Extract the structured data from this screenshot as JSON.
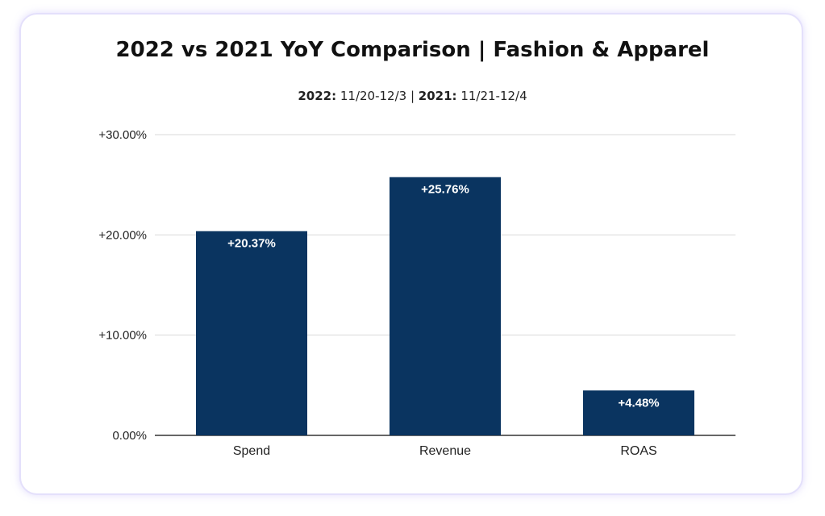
{
  "chart_data": {
    "type": "bar",
    "title": "2022 vs 2021 YoY Comparison | Fashion & Apparel",
    "subtitle": {
      "label_2022": "2022:",
      "range_2022": " 11/20-12/3",
      "separator": " | ",
      "label_2021": "2021:",
      "range_2021": " 11/21-12/4"
    },
    "categories": [
      "Spend",
      "Revenue",
      "ROAS"
    ],
    "values": [
      20.37,
      25.76,
      4.48
    ],
    "data_labels": [
      "+20.37%",
      "+25.76%",
      "+4.48%"
    ],
    "ylim": [
      0,
      30
    ],
    "y_ticks": [
      0,
      10,
      20,
      30
    ],
    "y_tick_labels": [
      "0.00%",
      "+10.00%",
      "+20.00%",
      "+30.00%"
    ],
    "grid": true,
    "bar_color": "#0a3460"
  }
}
